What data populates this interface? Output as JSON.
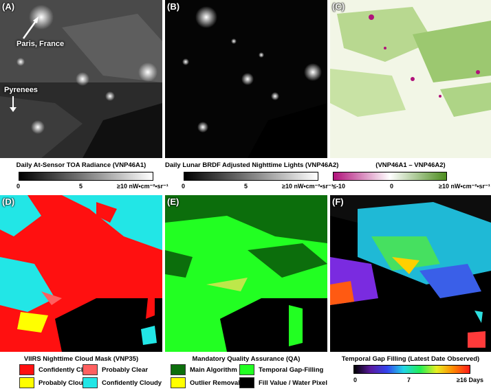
{
  "panels": {
    "a": {
      "label": "(A)",
      "annotation_paris": "Paris, France",
      "annotation_pyrenees": "Pyrenees"
    },
    "b": {
      "label": "(B)"
    },
    "c": {
      "label": "(C)"
    },
    "d": {
      "label": "(D)"
    },
    "e": {
      "label": "(E)"
    },
    "f": {
      "label": "(F)"
    }
  },
  "colorbars": {
    "a": {
      "title": "Daily At-Sensor TOA Radiance (VNP46A1)",
      "ticks": [
        "0",
        "5",
        "≥10 nW•cm⁻²•sr⁻¹"
      ],
      "colors": [
        "#000000",
        "#ffffff"
      ]
    },
    "b": {
      "title": "Daily Lunar BRDF Adjusted Nighttime Lights (VNP46A2)",
      "ticks": [
        "0",
        "5",
        "≥10 nW•cm⁻²•sr⁻¹"
      ],
      "colors": [
        "#000000",
        "#ffffff"
      ]
    },
    "c": {
      "title": "(VNP46A1 – VNP46A2)",
      "ticks": [
        "≤-10",
        "0",
        "≥10 nW•cm⁻²•sr⁻¹"
      ],
      "colors": [
        "#b0127a",
        "#ffffff",
        "#4c8c1e"
      ]
    },
    "f": {
      "title": "Temporal Gap Filling (Latest Date Observed)",
      "ticks": [
        "0",
        "7",
        "≥16 Days"
      ]
    }
  },
  "legend_d": {
    "title": "VIIRS Nighttime Cloud Mask (VNP35)",
    "items": [
      {
        "label": "Confidently Clear",
        "color": "#ff1010"
      },
      {
        "label": "Probably Clear",
        "color": "#ff6060"
      },
      {
        "label": "Probably Cloudy",
        "color": "#ffff00"
      },
      {
        "label": "Confidently Cloudy",
        "color": "#22e6e6"
      }
    ]
  },
  "legend_e": {
    "title": "Mandatory Quality Assurance (QA)",
    "items": [
      {
        "label": "Main Algorithm",
        "color": "#0c6e0c"
      },
      {
        "label": "Temporal Gap-Filling",
        "color": "#22ff22"
      },
      {
        "label": "Outlier Removal",
        "color": "#ffff00"
      },
      {
        "label": "Fill Value / Water Pixel",
        "color": "#000000"
      }
    ]
  }
}
